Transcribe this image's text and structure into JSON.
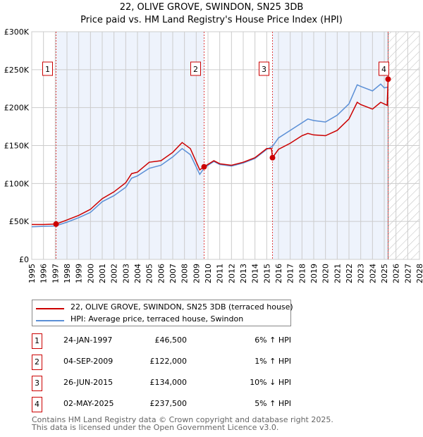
{
  "chart_data": {
    "type": "line",
    "title": "22, OLIVE GROVE, SWINDON, SN25 3DB",
    "subtitle": "Price paid vs. HM Land Registry's House Price Index (HPI)",
    "xlim": [
      1995,
      2028
    ],
    "ylim": [
      0,
      300000
    ],
    "x_ticks": [
      "1995",
      "1996",
      "1997",
      "1998",
      "1999",
      "2000",
      "2001",
      "2002",
      "2003",
      "2004",
      "2005",
      "2006",
      "2007",
      "2008",
      "2009",
      "2010",
      "2011",
      "2012",
      "2013",
      "2014",
      "2015",
      "2016",
      "2017",
      "2018",
      "2019",
      "2020",
      "2021",
      "2022",
      "2023",
      "2024",
      "2025",
      "2026",
      "2027",
      "2028"
    ],
    "y_ticks": [
      {
        "v": 0,
        "l": "£0"
      },
      {
        "v": 50000,
        "l": "£50K"
      },
      {
        "v": 100000,
        "l": "£100K"
      },
      {
        "v": 150000,
        "l": "£150K"
      },
      {
        "v": 200000,
        "l": "£200K"
      },
      {
        "v": 250000,
        "l": "£250K"
      },
      {
        "v": 300000,
        "l": "£300K"
      }
    ],
    "grid": true,
    "forecast_start": 2025.33,
    "series": [
      {
        "name": "22, OLIVE GROVE, SWINDON, SN25 3DB (terraced house)",
        "color": "#cc0000",
        "x": [
          1995,
          1996,
          1997.07,
          1998,
          1999,
          2000,
          2001,
          2002,
          2003,
          2003.5,
          2004,
          2005,
          2006,
          2007,
          2007.8,
          2008.5,
          2009.3,
          2009.67,
          2010.5,
          2011,
          2012,
          2013,
          2014,
          2015,
          2015.4,
          2015.49,
          2016,
          2017,
          2018,
          2018.5,
          2019,
          2020,
          2021,
          2022,
          2022.7,
          2023,
          2024,
          2024.7,
          2025.25,
          2025.33
        ],
        "y": [
          46000,
          46000,
          46500,
          52000,
          58000,
          66000,
          80000,
          89000,
          101000,
          113000,
          115000,
          128000,
          130000,
          141000,
          154000,
          146000,
          118000,
          122000,
          130000,
          126000,
          124000,
          128000,
          134000,
          146000,
          146000,
          134000,
          145000,
          153000,
          163000,
          166000,
          164000,
          163000,
          170000,
          185000,
          207000,
          204000,
          198000,
          207000,
          203000,
          237500
        ]
      },
      {
        "name": "HPI: Average price, terraced house, Swindon",
        "color": "#5b8fd6",
        "x": [
          1995,
          1996,
          1997,
          1998,
          1999,
          2000,
          2001,
          2002,
          2003,
          2003.5,
          2004,
          2005,
          2006,
          2007,
          2007.8,
          2008.5,
          2009.3,
          2009.7,
          2010.5,
          2011,
          2012,
          2013,
          2014,
          2015,
          2015.5,
          2016,
          2017,
          2018,
          2018.5,
          2019,
          2020,
          2021,
          2022,
          2022.7,
          2023,
          2024,
          2024.7,
          2025,
          2025.33
        ],
        "y": [
          43000,
          43500,
          44000,
          49000,
          55000,
          62000,
          76000,
          84000,
          95000,
          107000,
          110000,
          120000,
          124000,
          135000,
          146000,
          138000,
          112000,
          121000,
          129000,
          125000,
          123000,
          127000,
          133000,
          145000,
          149000,
          160000,
          170000,
          180000,
          185000,
          183000,
          181000,
          190000,
          205000,
          230000,
          228000,
          222000,
          231000,
          226000,
          227000
        ]
      }
    ],
    "sales": [
      {
        "label": "1",
        "date": "24-JAN-1997",
        "x": 1997.07,
        "price": "£46,500",
        "value": 46500,
        "hpi": "6% ↑ HPI"
      },
      {
        "label": "2",
        "date": "04-SEP-2009",
        "x": 2009.67,
        "price": "£122,000",
        "value": 122000,
        "hpi": "1% ↑ HPI"
      },
      {
        "label": "3",
        "date": "26-JUN-2015",
        "x": 2015.49,
        "price": "£134,000",
        "value": 134000,
        "hpi": "10% ↓ HPI"
      },
      {
        "label": "4",
        "date": "02-MAY-2025",
        "x": 2025.33,
        "price": "£237,500",
        "value": 237500,
        "hpi": "5% ↑ HPI"
      }
    ]
  },
  "footer": [
    "Contains HM Land Registry data © Crown copyright and database right 2025.",
    "This data is licensed under the Open Government Licence v3.0."
  ]
}
